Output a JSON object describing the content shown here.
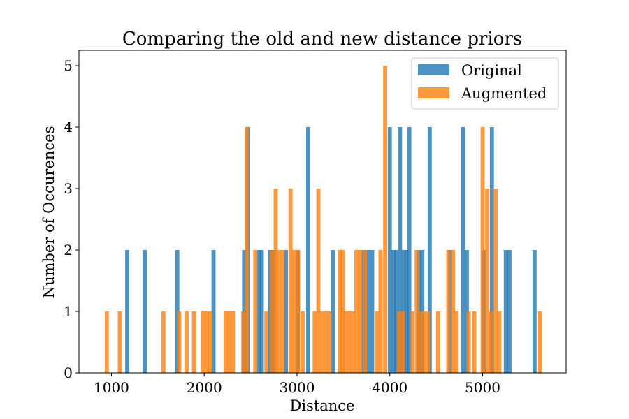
{
  "chart_data": {
    "type": "bar",
    "title": "Comparing the old and new distance priors",
    "xlabel": "Distance",
    "ylabel": "Number of Occurences",
    "xlim": [
      650,
      5900
    ],
    "ylim": [
      0,
      5.25
    ],
    "xticks": [
      1000,
      2000,
      3000,
      4000,
      5000
    ],
    "yticks": [
      0,
      1,
      2,
      3,
      4,
      5
    ],
    "grid": false,
    "legend_position": "top-right",
    "bin_width": 44,
    "series": [
      {
        "name": "Original",
        "color": "#1f77b4",
        "alpha": 0.8,
        "x": [
          1170,
          1360,
          1710,
          2100,
          2430,
          2470,
          2590,
          2620,
          2710,
          2750,
          2880,
          3010,
          3120,
          3390,
          3720,
          3770,
          3810,
          4000,
          4040,
          4070,
          4110,
          4150,
          4180,
          4210,
          4310,
          4350,
          4430,
          4650,
          4790,
          4830,
          5010,
          5100,
          5250,
          5290,
          5560
        ],
        "values": [
          2,
          2,
          2,
          2,
          2,
          4,
          2,
          2,
          2,
          2,
          2,
          2,
          4,
          2,
          2,
          2,
          2,
          4,
          2,
          2,
          4,
          2,
          2,
          4,
          2,
          2,
          4,
          2,
          4,
          2,
          2,
          4,
          2,
          2,
          2
        ]
      },
      {
        "name": "Augmented",
        "color": "#ff7f0e",
        "alpha": 0.8,
        "x": [
          950,
          1090,
          1560,
          1730,
          1810,
          1890,
          1990,
          2030,
          2060,
          2230,
          2270,
          2310,
          2420,
          2460,
          2550,
          2670,
          2730,
          2770,
          2800,
          2840,
          2930,
          2970,
          3010,
          3060,
          3190,
          3230,
          3270,
          3310,
          3350,
          3460,
          3490,
          3520,
          3560,
          3600,
          3640,
          3680,
          3730,
          3860,
          3900,
          3950,
          4100,
          4140,
          4240,
          4290,
          4330,
          4370,
          4410,
          4520,
          4630,
          4680,
          4720,
          4850,
          4910,
          5000,
          5050,
          5090,
          5140,
          5180,
          5620
        ],
        "values": [
          1,
          1,
          1,
          1,
          1,
          1,
          1,
          1,
          1,
          1,
          1,
          1,
          1,
          4,
          2,
          1,
          2,
          3,
          2,
          2,
          3,
          2,
          2,
          1,
          1,
          3,
          1,
          1,
          1,
          2,
          2,
          1,
          1,
          1,
          2,
          2,
          2,
          1,
          2,
          5,
          1,
          1,
          1,
          2,
          1,
          1,
          1,
          1,
          2,
          2,
          1,
          1,
          1,
          4,
          3,
          1,
          3,
          1,
          1
        ]
      }
    ]
  }
}
